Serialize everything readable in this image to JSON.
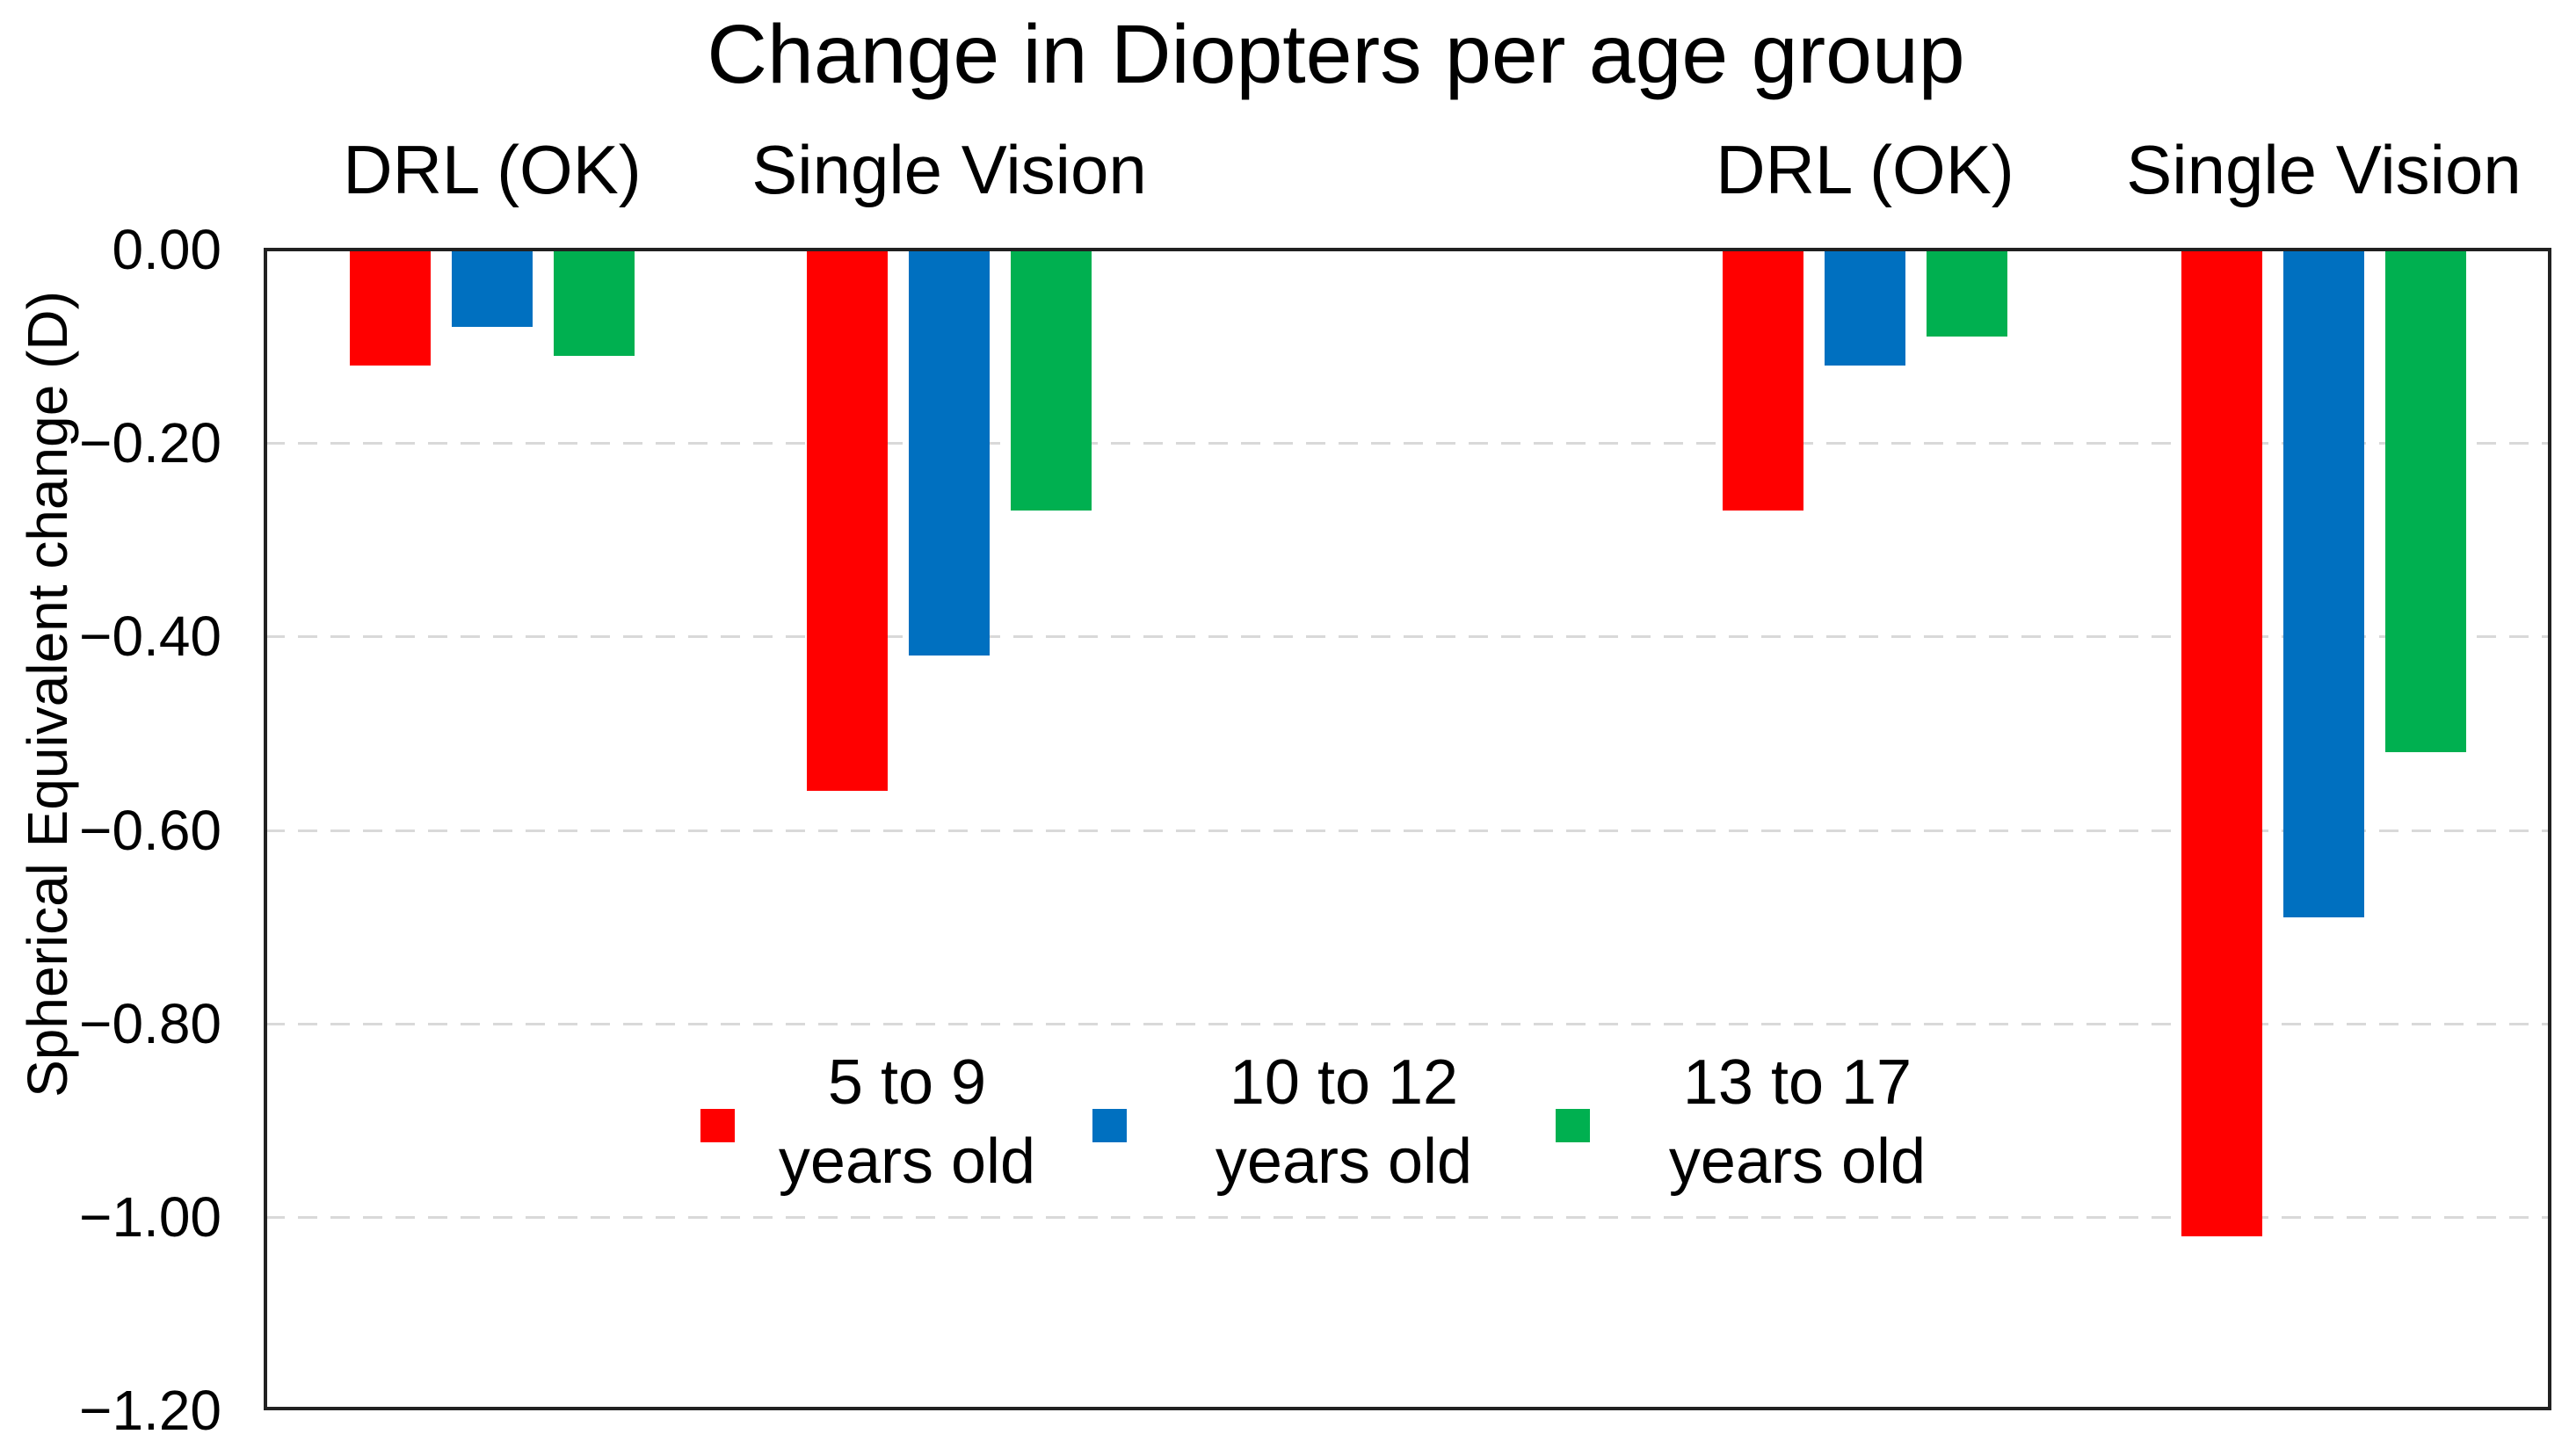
{
  "chart_data": {
    "type": "bar",
    "title": "Change in Diopters per age group",
    "ylabel": "Spherical Equivalent change (D)",
    "xlabel": "",
    "ylim": [
      -1.2,
      0.0
    ],
    "ytick_step": 0.2,
    "ytick_labels": [
      "0.00",
      "−0.20",
      "−0.40",
      "−0.60",
      "−0.80",
      "−1.00",
      "−1.20"
    ],
    "grid": "horizontal-dashed",
    "legend_position": "inside-bottom-center",
    "categories": [
      "DRL (OK)",
      "Single Vision",
      "DRL (OK)",
      "Single Vision"
    ],
    "series": [
      {
        "name": "5 to 9 years old",
        "legend_lines": [
          "5 to 9",
          "years old"
        ],
        "color": "#FF0000",
        "values": [
          -0.12,
          -0.56,
          -0.27,
          -1.02
        ]
      },
      {
        "name": "10 to 12 years old",
        "legend_lines": [
          "10 to 12",
          "years old"
        ],
        "color": "#0070C0",
        "values": [
          -0.08,
          -0.42,
          -0.12,
          -0.69
        ]
      },
      {
        "name": "13 to 17 years old",
        "legend_lines": [
          "13 to 17",
          "years old"
        ],
        "color": "#00B050",
        "values": [
          -0.11,
          -0.27,
          -0.09,
          -0.52
        ]
      }
    ],
    "colors": {
      "background": "#FFFFFF",
      "gridline": "#D9D9D9",
      "axis_border": "#212121",
      "text": "#000000"
    }
  }
}
